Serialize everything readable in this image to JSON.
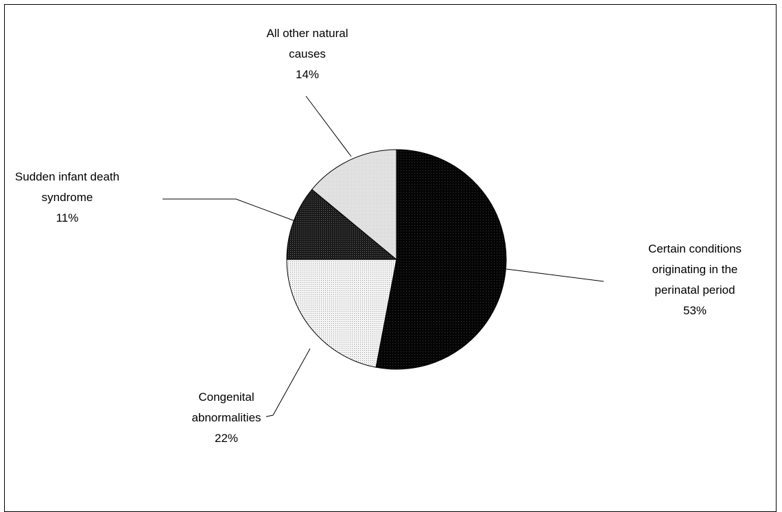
{
  "chart_data": {
    "type": "pie",
    "title": "",
    "slices": [
      {
        "label_lines": [
          "Certain conditions",
          "originating in the",
          "perinatal period"
        ],
        "pct_label": "53%",
        "value": 53,
        "fill": "#000000",
        "pattern": "solid-dark"
      },
      {
        "label_lines": [
          "Congenital",
          "abnormalities"
        ],
        "pct_label": "22%",
        "value": 22,
        "fill": "#ffffff",
        "pattern": "light-dots"
      },
      {
        "label_lines": [
          "Sudden infant death",
          "syndrome"
        ],
        "pct_label": "11%",
        "value": 11,
        "fill": "#2a2a2a",
        "pattern": "dark"
      },
      {
        "label_lines": [
          "All other natural",
          "causes"
        ],
        "pct_label": "14%",
        "value": 14,
        "fill": "#e4e4e4",
        "pattern": "light-gray"
      }
    ],
    "legend": "none",
    "start_angle": "12 o'clock, clockwise"
  }
}
